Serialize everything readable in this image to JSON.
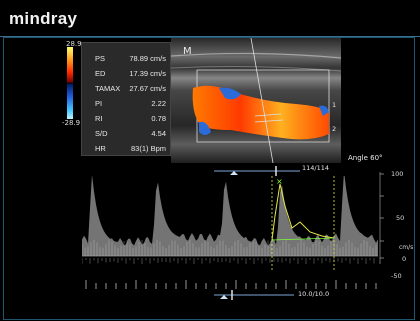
{
  "header": {
    "brand": "mindray"
  },
  "color_scale": {
    "max_label": "28.9",
    "min_label": "-28.9"
  },
  "measurements": [
    {
      "name": "PS",
      "value": "78.89 cm/s"
    },
    {
      "name": "ED",
      "value": "17.39 cm/s"
    },
    {
      "name": "TAMAX",
      "value": "27.67 cm/s"
    },
    {
      "name": "PI",
      "value": "2.22"
    },
    {
      "name": "RI",
      "value": "0.78"
    },
    {
      "name": "S/D",
      "value": "4.54"
    },
    {
      "name": "HR",
      "value": "83(1) Bpm"
    }
  ],
  "bmode": {
    "marker_label": "M",
    "side_marks": [
      "1",
      "2"
    ],
    "angle_label": "Angle 60°",
    "frame_counter": "114/114"
  },
  "spectrum": {
    "scale_labels": [
      "100",
      "50",
      "0",
      "-50"
    ],
    "unit_label": "cm/s",
    "cine_counter": "10.0/10.0"
  },
  "colors": {
    "frame_border": "#1f5670",
    "panel_bg": "#2a2a2a",
    "trace_yellow": "#e6e64a",
    "peak_marker": "#7dff3c",
    "cursor_blue": "#6fa2d8"
  }
}
